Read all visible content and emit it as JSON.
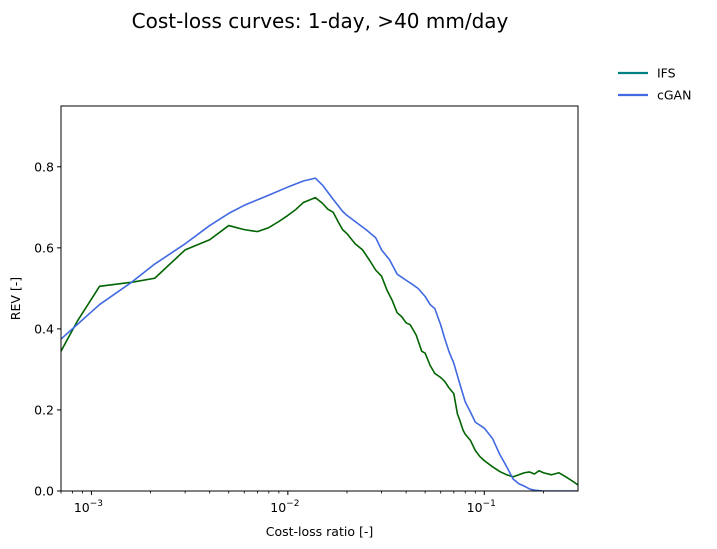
{
  "chart_data": {
    "type": "line",
    "title": "Cost-loss curves: 1-day, >40 mm/day",
    "xlabel": "Cost-loss ratio [-]",
    "ylabel": "REV [-]",
    "xscale": "log",
    "xlim": [
      0.0007,
      0.3
    ],
    "ylim": [
      0,
      0.95
    ],
    "xticks": [
      0.001,
      0.01,
      0.1
    ],
    "xtick_labels": [
      {
        "base": "10",
        "exp": "−3"
      },
      {
        "base": "10",
        "exp": "−2"
      },
      {
        "base": "10",
        "exp": "−1"
      }
    ],
    "yticks": [
      0.0,
      0.2,
      0.4,
      0.6,
      0.8
    ],
    "ytick_labels": [
      "0.0",
      "0.2",
      "0.4",
      "0.6",
      "0.8"
    ],
    "grid": false,
    "legend_position": "outside-top-right",
    "series": [
      {
        "name": "IFS",
        "color": "#006400",
        "legend_color": "#008080",
        "x": [
          0.0007,
          0.00085,
          0.0011,
          0.0016,
          0.0021,
          0.003,
          0.004,
          0.005,
          0.006,
          0.007,
          0.008,
          0.009,
          0.01,
          0.011,
          0.012,
          0.0138,
          0.015,
          0.016,
          0.017,
          0.018,
          0.019,
          0.02,
          0.022,
          0.024,
          0.026,
          0.028,
          0.03,
          0.032,
          0.034,
          0.036,
          0.038,
          0.04,
          0.042,
          0.045,
          0.048,
          0.05,
          0.053,
          0.056,
          0.058,
          0.06,
          0.063,
          0.066,
          0.07,
          0.073,
          0.075,
          0.078,
          0.08,
          0.085,
          0.09,
          0.095,
          0.1,
          0.11,
          0.12,
          0.13,
          0.14,
          0.15,
          0.16,
          0.17,
          0.18,
          0.19,
          0.2,
          0.22,
          0.24,
          0.26,
          0.28,
          0.3
        ],
        "y": [
          0.345,
          0.42,
          0.505,
          0.515,
          0.525,
          0.595,
          0.62,
          0.655,
          0.645,
          0.64,
          0.65,
          0.665,
          0.68,
          0.695,
          0.712,
          0.724,
          0.71,
          0.695,
          0.688,
          0.665,
          0.645,
          0.635,
          0.61,
          0.595,
          0.57,
          0.545,
          0.53,
          0.495,
          0.47,
          0.44,
          0.43,
          0.415,
          0.41,
          0.385,
          0.345,
          0.34,
          0.31,
          0.29,
          0.285,
          0.28,
          0.27,
          0.255,
          0.24,
          0.19,
          0.175,
          0.15,
          0.14,
          0.125,
          0.1,
          0.085,
          0.075,
          0.06,
          0.048,
          0.04,
          0.035,
          0.04,
          0.045,
          0.047,
          0.042,
          0.05,
          0.045,
          0.04,
          0.045,
          0.035,
          0.025,
          0.015
        ]
      },
      {
        "name": "cGAN",
        "color": "#4169E1",
        "legend_color": "#4169E1",
        "x": [
          0.0007,
          0.0008,
          0.0011,
          0.0016,
          0.0021,
          0.003,
          0.004,
          0.005,
          0.006,
          0.008,
          0.01,
          0.012,
          0.0138,
          0.015,
          0.017,
          0.019,
          0.02,
          0.022,
          0.025,
          0.028,
          0.03,
          0.033,
          0.036,
          0.04,
          0.043,
          0.046,
          0.05,
          0.053,
          0.056,
          0.06,
          0.063,
          0.066,
          0.07,
          0.075,
          0.08,
          0.085,
          0.09,
          0.1,
          0.11,
          0.12,
          0.13,
          0.14,
          0.15,
          0.16,
          0.17,
          0.18,
          0.2,
          0.22,
          0.25,
          0.3
        ],
        "y": [
          0.375,
          0.4,
          0.46,
          0.515,
          0.56,
          0.61,
          0.655,
          0.685,
          0.705,
          0.73,
          0.75,
          0.765,
          0.772,
          0.755,
          0.72,
          0.69,
          0.68,
          0.665,
          0.645,
          0.625,
          0.595,
          0.57,
          0.535,
          0.52,
          0.51,
          0.5,
          0.48,
          0.46,
          0.45,
          0.41,
          0.375,
          0.345,
          0.315,
          0.265,
          0.22,
          0.195,
          0.17,
          0.155,
          0.13,
          0.09,
          0.06,
          0.03,
          0.018,
          0.012,
          0.005,
          0.002,
          0.0,
          0.0,
          0.0,
          0.0
        ]
      }
    ]
  }
}
